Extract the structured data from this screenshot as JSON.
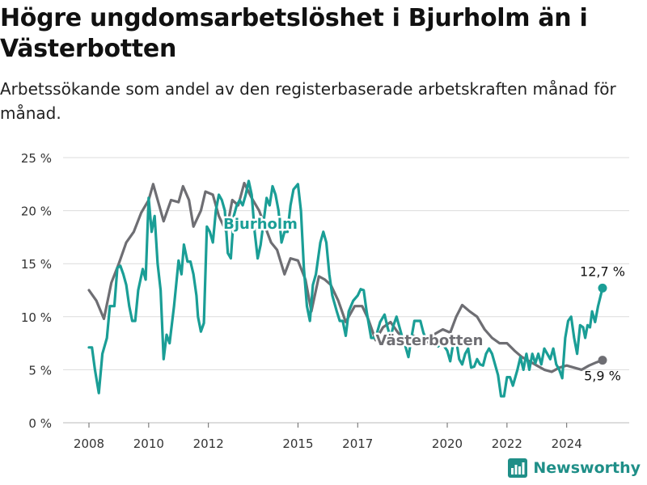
{
  "page": {
    "title": "Högre ungdomsarbetslöshet i Bjurholm än i Västerbotten",
    "subtitle": "Arbetssökande som andel av den registerbaserade arbetskraften månad för månad."
  },
  "brand": {
    "name": "Newsworthy",
    "icon": "bar-chart-logo-icon",
    "color": "#1f8f88"
  },
  "chart_data": {
    "type": "line",
    "title": "Högre ungdomsarbetslöshet i Bjurholm än i Västerbotten",
    "subtitle": "Arbetssökande som andel av den registerbaserade arbetskraften månad för månad.",
    "xlabel": "",
    "ylabel": "",
    "xlim": [
      2007.2,
      2025.9
    ],
    "ylim": [
      0,
      25
    ],
    "x_ticks": [
      2008,
      2010,
      2012,
      2015,
      2017,
      2020,
      2022,
      2024
    ],
    "x_tick_labels": [
      "2008",
      "2010",
      "2012",
      "2015",
      "2017",
      "2020",
      "2022",
      "2024"
    ],
    "y_ticks": [
      0,
      5,
      10,
      15,
      20,
      25
    ],
    "y_tick_labels": [
      "0 %",
      "5 %",
      "10 %",
      "15 %",
      "20 %",
      "25 %"
    ],
    "grid": true,
    "legend": "inline labels",
    "series": [
      {
        "name": "Västerbotten",
        "color": "#6e6e73",
        "end_label": "5,9 %",
        "points": [
          [
            2008.0,
            12.5
          ],
          [
            2008.25,
            11.5
          ],
          [
            2008.5,
            9.8
          ],
          [
            2008.75,
            13.2
          ],
          [
            2009.0,
            15.0
          ],
          [
            2009.25,
            17.0
          ],
          [
            2009.5,
            18.0
          ],
          [
            2009.75,
            19.8
          ],
          [
            2010.0,
            21.0
          ],
          [
            2010.15,
            22.5
          ],
          [
            2010.35,
            20.5
          ],
          [
            2010.5,
            19.0
          ],
          [
            2010.75,
            21.0
          ],
          [
            2011.0,
            20.8
          ],
          [
            2011.15,
            22.3
          ],
          [
            2011.35,
            21.0
          ],
          [
            2011.5,
            18.5
          ],
          [
            2011.75,
            20.0
          ],
          [
            2011.9,
            21.8
          ],
          [
            2012.15,
            21.5
          ],
          [
            2012.35,
            19.5
          ],
          [
            2012.6,
            18.0
          ],
          [
            2012.8,
            21.0
          ],
          [
            2013.0,
            20.5
          ],
          [
            2013.2,
            22.6
          ],
          [
            2013.45,
            21.2
          ],
          [
            2013.7,
            20.0
          ],
          [
            2013.9,
            18.5
          ],
          [
            2014.1,
            17.0
          ],
          [
            2014.3,
            16.3
          ],
          [
            2014.55,
            14.0
          ],
          [
            2014.75,
            15.5
          ],
          [
            2015.0,
            15.3
          ],
          [
            2015.25,
            13.5
          ],
          [
            2015.45,
            10.5
          ],
          [
            2015.7,
            13.8
          ],
          [
            2015.9,
            13.5
          ],
          [
            2016.1,
            13.0
          ],
          [
            2016.35,
            11.5
          ],
          [
            2016.6,
            9.5
          ],
          [
            2016.9,
            11.0
          ],
          [
            2017.15,
            11.0
          ],
          [
            2017.35,
            9.8
          ],
          [
            2017.6,
            7.8
          ],
          [
            2017.85,
            9.0
          ],
          [
            2018.1,
            9.5
          ],
          [
            2018.35,
            8.5
          ],
          [
            2018.6,
            7.8
          ],
          [
            2018.85,
            8.2
          ],
          [
            2019.1,
            8.0
          ],
          [
            2019.35,
            7.6
          ],
          [
            2019.6,
            8.4
          ],
          [
            2019.85,
            8.8
          ],
          [
            2020.1,
            8.5
          ],
          [
            2020.3,
            10.0
          ],
          [
            2020.5,
            11.1
          ],
          [
            2020.75,
            10.5
          ],
          [
            2021.0,
            10.0
          ],
          [
            2021.25,
            8.8
          ],
          [
            2021.5,
            8.0
          ],
          [
            2021.75,
            7.5
          ],
          [
            2022.0,
            7.5
          ],
          [
            2022.25,
            6.8
          ],
          [
            2022.5,
            6.2
          ],
          [
            2022.75,
            5.8
          ],
          [
            2023.0,
            5.4
          ],
          [
            2023.25,
            5.0
          ],
          [
            2023.5,
            4.8
          ],
          [
            2023.75,
            5.2
          ],
          [
            2024.0,
            5.4
          ],
          [
            2024.25,
            5.2
          ],
          [
            2024.5,
            5.0
          ],
          [
            2024.75,
            5.4
          ],
          [
            2025.0,
            5.7
          ],
          [
            2025.2,
            5.9
          ]
        ]
      },
      {
        "name": "Bjurholm",
        "color": "#1a9e96",
        "end_label": "12,7 %",
        "points": [
          [
            2008.0,
            7.1
          ],
          [
            2008.1,
            7.1
          ],
          [
            2008.2,
            5.0
          ],
          [
            2008.33,
            2.8
          ],
          [
            2008.45,
            6.5
          ],
          [
            2008.6,
            8.0
          ],
          [
            2008.7,
            11.0
          ],
          [
            2008.85,
            11.0
          ],
          [
            2008.95,
            14.6
          ],
          [
            2009.05,
            14.8
          ],
          [
            2009.15,
            14.0
          ],
          [
            2009.25,
            13.0
          ],
          [
            2009.35,
            11.0
          ],
          [
            2009.45,
            9.6
          ],
          [
            2009.55,
            9.6
          ],
          [
            2009.65,
            12.5
          ],
          [
            2009.8,
            14.5
          ],
          [
            2009.9,
            13.5
          ],
          [
            2010.0,
            21.2
          ],
          [
            2010.1,
            18.0
          ],
          [
            2010.2,
            19.5
          ],
          [
            2010.3,
            15.0
          ],
          [
            2010.4,
            12.5
          ],
          [
            2010.5,
            6.0
          ],
          [
            2010.6,
            8.3
          ],
          [
            2010.7,
            7.5
          ],
          [
            2010.85,
            11.0
          ],
          [
            2011.0,
            15.3
          ],
          [
            2011.1,
            14.0
          ],
          [
            2011.18,
            16.8
          ],
          [
            2011.3,
            15.2
          ],
          [
            2011.4,
            15.2
          ],
          [
            2011.5,
            14.0
          ],
          [
            2011.6,
            12.0
          ],
          [
            2011.65,
            10.0
          ],
          [
            2011.75,
            8.6
          ],
          [
            2011.85,
            9.4
          ],
          [
            2011.95,
            18.5
          ],
          [
            2012.05,
            18.0
          ],
          [
            2012.15,
            17.0
          ],
          [
            2012.25,
            20.0
          ],
          [
            2012.35,
            21.5
          ],
          [
            2012.45,
            21.0
          ],
          [
            2012.55,
            20.0
          ],
          [
            2012.65,
            16.0
          ],
          [
            2012.75,
            15.5
          ],
          [
            2012.85,
            19.5
          ],
          [
            2012.95,
            20.5
          ],
          [
            2013.05,
            21.0
          ],
          [
            2013.15,
            20.5
          ],
          [
            2013.25,
            21.5
          ],
          [
            2013.35,
            22.8
          ],
          [
            2013.45,
            21.5
          ],
          [
            2013.55,
            18.0
          ],
          [
            2013.65,
            15.5
          ],
          [
            2013.75,
            16.8
          ],
          [
            2013.85,
            19.0
          ],
          [
            2013.95,
            21.2
          ],
          [
            2014.05,
            20.5
          ],
          [
            2014.15,
            22.3
          ],
          [
            2014.25,
            21.5
          ],
          [
            2014.35,
            20.0
          ],
          [
            2014.45,
            17.0
          ],
          [
            2014.55,
            18.0
          ],
          [
            2014.65,
            18.0
          ],
          [
            2014.75,
            20.5
          ],
          [
            2014.85,
            22.0
          ],
          [
            2015.0,
            22.5
          ],
          [
            2015.1,
            20.0
          ],
          [
            2015.2,
            14.5
          ],
          [
            2015.3,
            11.0
          ],
          [
            2015.4,
            9.6
          ],
          [
            2015.5,
            13.0
          ],
          [
            2015.6,
            14.0
          ],
          [
            2015.75,
            17.0
          ],
          [
            2015.85,
            18.0
          ],
          [
            2015.95,
            17.0
          ],
          [
            2016.05,
            14.0
          ],
          [
            2016.15,
            12.0
          ],
          [
            2016.3,
            10.5
          ],
          [
            2016.4,
            9.6
          ],
          [
            2016.5,
            9.6
          ],
          [
            2016.6,
            8.2
          ],
          [
            2016.7,
            10.5
          ],
          [
            2016.85,
            11.5
          ],
          [
            2017.0,
            12.0
          ],
          [
            2017.1,
            12.6
          ],
          [
            2017.2,
            12.5
          ],
          [
            2017.3,
            10.5
          ],
          [
            2017.45,
            8.0
          ],
          [
            2017.6,
            8.0
          ],
          [
            2017.75,
            9.5
          ],
          [
            2017.9,
            10.2
          ],
          [
            2018.0,
            9.0
          ],
          [
            2018.1,
            8.0
          ],
          [
            2018.2,
            9.2
          ],
          [
            2018.3,
            10.0
          ],
          [
            2018.4,
            9.0
          ],
          [
            2018.5,
            8.0
          ],
          [
            2018.6,
            7.2
          ],
          [
            2018.7,
            6.2
          ],
          [
            2018.8,
            8.0
          ],
          [
            2018.9,
            9.6
          ],
          [
            2019.0,
            9.6
          ],
          [
            2019.1,
            9.6
          ],
          [
            2019.2,
            8.5
          ],
          [
            2019.3,
            7.8
          ],
          [
            2019.4,
            8.0
          ],
          [
            2019.5,
            8.0
          ],
          [
            2019.6,
            7.5
          ],
          [
            2019.7,
            7.2
          ],
          [
            2019.8,
            7.6
          ],
          [
            2019.9,
            7.2
          ],
          [
            2020.0,
            6.8
          ],
          [
            2020.1,
            5.8
          ],
          [
            2020.2,
            7.5
          ],
          [
            2020.3,
            7.8
          ],
          [
            2020.4,
            6.0
          ],
          [
            2020.5,
            5.5
          ],
          [
            2020.6,
            6.5
          ],
          [
            2020.7,
            7.0
          ],
          [
            2020.8,
            5.2
          ],
          [
            2020.9,
            5.3
          ],
          [
            2021.0,
            6.0
          ],
          [
            2021.1,
            5.5
          ],
          [
            2021.2,
            5.4
          ],
          [
            2021.3,
            6.5
          ],
          [
            2021.4,
            7.0
          ],
          [
            2021.5,
            6.5
          ],
          [
            2021.6,
            5.5
          ],
          [
            2021.7,
            4.5
          ],
          [
            2021.8,
            2.5
          ],
          [
            2021.9,
            2.5
          ],
          [
            2022.0,
            4.3
          ],
          [
            2022.1,
            4.3
          ],
          [
            2022.2,
            3.5
          ],
          [
            2022.35,
            5.0
          ],
          [
            2022.45,
            6.2
          ],
          [
            2022.55,
            5.0
          ],
          [
            2022.65,
            6.5
          ],
          [
            2022.75,
            5.0
          ],
          [
            2022.85,
            6.5
          ],
          [
            2022.95,
            5.6
          ],
          [
            2023.05,
            6.5
          ],
          [
            2023.15,
            5.5
          ],
          [
            2023.25,
            7.0
          ],
          [
            2023.35,
            6.5
          ],
          [
            2023.45,
            6.0
          ],
          [
            2023.55,
            7.0
          ],
          [
            2023.65,
            5.5
          ],
          [
            2023.75,
            5.0
          ],
          [
            2023.85,
            4.2
          ],
          [
            2023.95,
            8.0
          ],
          [
            2024.05,
            9.6
          ],
          [
            2024.15,
            10.0
          ],
          [
            2024.25,
            8.0
          ],
          [
            2024.35,
            6.5
          ],
          [
            2024.45,
            9.2
          ],
          [
            2024.55,
            9.0
          ],
          [
            2024.62,
            8.0
          ],
          [
            2024.7,
            9.2
          ],
          [
            2024.78,
            9.0
          ],
          [
            2024.85,
            10.5
          ],
          [
            2024.95,
            9.5
          ],
          [
            2025.05,
            11.0
          ],
          [
            2025.2,
            12.7
          ]
        ]
      }
    ]
  }
}
